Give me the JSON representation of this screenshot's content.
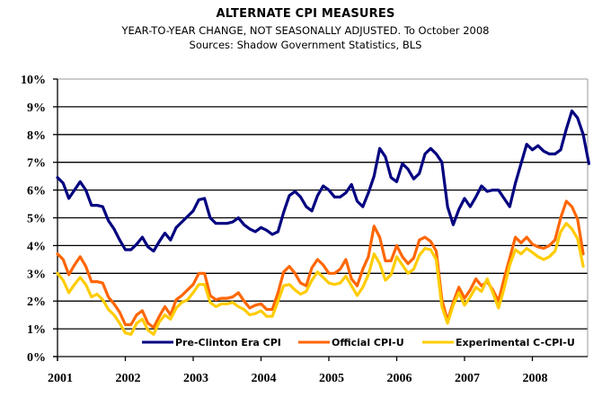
{
  "chart_data": {
    "type": "line",
    "title": "ALTERNATE CPI MEASURES",
    "subtitle": "YEAR-TO-YEAR CHANGE, NOT SEASONALLY ADJUSTED. To October 2008",
    "source": "Sources: Shadow Government Statistics, BLS",
    "xlabel": "",
    "ylabel": "",
    "x_start": "2001-01",
    "x_end": "2008-10",
    "x_frequency": "monthly",
    "x_tick_labels": [
      "2001",
      "2002",
      "2003",
      "2004",
      "2005",
      "2006",
      "2007",
      "2008"
    ],
    "y_tick_labels": [
      "0%",
      "1%",
      "2%",
      "3%",
      "4%",
      "5%",
      "6%",
      "7%",
      "8%",
      "9%",
      "10%"
    ],
    "ylim": [
      0,
      10
    ],
    "y_unit": "%",
    "grid": true,
    "legend_position": "bottom",
    "series": [
      {
        "name": "Pre-Clinton Era CPI",
        "color": "#000080",
        "values": [
          6.45,
          6.25,
          5.7,
          6.0,
          6.3,
          6.0,
          5.45,
          5.45,
          5.4,
          4.9,
          4.6,
          4.2,
          3.85,
          3.85,
          4.05,
          4.3,
          3.95,
          3.8,
          4.15,
          4.45,
          4.2,
          4.65,
          4.85,
          5.05,
          5.25,
          5.65,
          5.7,
          5.0,
          4.8,
          4.8,
          4.8,
          4.85,
          5.0,
          4.75,
          4.6,
          4.5,
          4.65,
          4.55,
          4.4,
          4.5,
          5.2,
          5.8,
          5.95,
          5.75,
          5.4,
          5.25,
          5.8,
          6.15,
          6.0,
          5.75,
          5.75,
          5.9,
          6.2,
          5.6,
          5.4,
          5.9,
          6.5,
          7.5,
          7.2,
          6.45,
          6.3,
          6.95,
          6.75,
          6.4,
          6.6,
          7.3,
          7.5,
          7.3,
          7.0,
          5.4,
          4.75,
          5.3,
          5.7,
          5.4,
          5.75,
          6.15,
          5.95,
          6.0,
          6.0,
          5.7,
          5.4,
          6.25,
          6.95,
          7.65,
          7.45,
          7.6,
          7.4,
          7.3,
          7.3,
          7.45,
          8.2,
          8.85,
          8.6,
          8.0,
          6.95
        ]
      },
      {
        "name": "Official CPI-U",
        "color": "#FF6600",
        "values": [
          3.7,
          3.5,
          2.95,
          3.3,
          3.6,
          3.25,
          2.7,
          2.7,
          2.65,
          2.15,
          1.9,
          1.6,
          1.15,
          1.15,
          1.5,
          1.65,
          1.2,
          1.05,
          1.45,
          1.8,
          1.5,
          2.05,
          2.2,
          2.4,
          2.6,
          3.0,
          3.0,
          2.2,
          2.05,
          2.1,
          2.1,
          2.15,
          2.3,
          2.0,
          1.75,
          1.85,
          1.9,
          1.7,
          1.7,
          2.3,
          3.05,
          3.25,
          3.0,
          2.65,
          2.55,
          3.2,
          3.5,
          3.3,
          3.0,
          3.0,
          3.15,
          3.5,
          2.8,
          2.55,
          3.15,
          3.6,
          4.7,
          4.3,
          3.45,
          3.45,
          4.0,
          3.6,
          3.35,
          3.55,
          4.2,
          4.3,
          4.15,
          3.8,
          2.05,
          1.3,
          1.95,
          2.5,
          2.1,
          2.4,
          2.8,
          2.55,
          2.7,
          2.4,
          2.0,
          2.8,
          3.55,
          4.3,
          4.1,
          4.3,
          4.05,
          3.95,
          3.9,
          4.0,
          4.2,
          5.0,
          5.6,
          5.4,
          4.95,
          3.7
        ]
      },
      {
        "name": "Experimental C-CPI-U",
        "color": "#FFCC00",
        "values": [
          3.0,
          2.75,
          2.3,
          2.6,
          2.85,
          2.6,
          2.15,
          2.25,
          2.05,
          1.7,
          1.5,
          1.2,
          0.85,
          0.8,
          1.2,
          1.35,
          0.95,
          0.8,
          1.25,
          1.5,
          1.35,
          1.75,
          1.95,
          2.05,
          2.3,
          2.6,
          2.6,
          1.95,
          1.8,
          1.9,
          1.9,
          1.95,
          1.8,
          1.7,
          1.5,
          1.55,
          1.65,
          1.45,
          1.45,
          2.0,
          2.55,
          2.6,
          2.4,
          2.25,
          2.35,
          2.75,
          3.05,
          2.85,
          2.65,
          2.6,
          2.65,
          2.9,
          2.55,
          2.2,
          2.5,
          2.95,
          3.7,
          3.35,
          2.75,
          2.95,
          3.6,
          3.3,
          3.0,
          3.15,
          3.65,
          3.9,
          3.85,
          3.5,
          1.8,
          1.2,
          1.85,
          2.3,
          1.85,
          2.15,
          2.5,
          2.35,
          2.8,
          2.3,
          1.75,
          2.45,
          3.3,
          3.85,
          3.7,
          3.9,
          3.75,
          3.6,
          3.5,
          3.6,
          3.8,
          4.5,
          4.8,
          4.6,
          4.25,
          3.25
        ]
      }
    ]
  }
}
